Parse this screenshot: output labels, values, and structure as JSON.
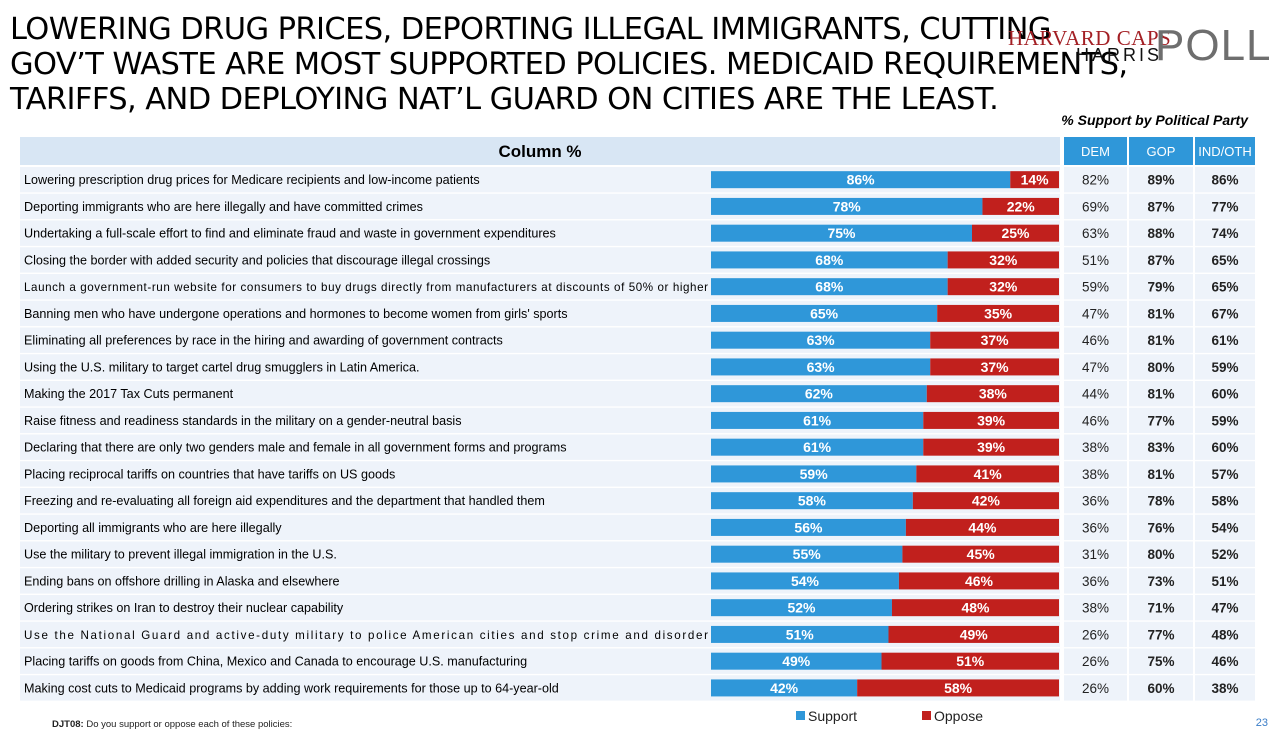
{
  "headline": [
    "LOWERING DRUG PRICES, DEPORTING ILLEGAL IMMIGRANTS, CUTTING",
    "GOV’T WASTE ARE MOST SUPPORTED POLICIES. MEDICAID REQUIREMENTS,",
    "TARIFFS, AND DEPLOYING NAT’L GUARD ON CITIES ARE THE LEAST."
  ],
  "logo": {
    "top": "HARVARD CAPS",
    "bottom": "HARRIS",
    "word": "POLL"
  },
  "party_caption": "% Support by Political Party",
  "column_header": "Column %",
  "footer": {
    "code": "DJT08:",
    "question": "Do you support or oppose each of these policies:"
  },
  "page_number": "23",
  "colors": {
    "support": "#2f97d9",
    "oppose": "#c1201d",
    "header_bg": "#d8e6f4",
    "row_bg": "#eef3fa",
    "party_header_bg": "#2f97d9"
  },
  "chart_data": {
    "type": "bar",
    "stacked": true,
    "orientation": "horizontal",
    "legend_position": "bottom",
    "series": [
      {
        "name": "Support",
        "values": [
          86,
          78,
          75,
          68,
          68,
          65,
          63,
          63,
          62,
          61,
          61,
          59,
          58,
          56,
          55,
          54,
          52,
          51,
          49,
          42
        ]
      },
      {
        "name": "Oppose",
        "values": [
          14,
          22,
          25,
          32,
          32,
          35,
          37,
          37,
          38,
          39,
          39,
          41,
          42,
          44,
          45,
          46,
          48,
          49,
          51,
          58
        ]
      }
    ],
    "categories": [
      "Lowering prescription drug prices for Medicare recipients and low-income patients",
      "Deporting immigrants who are here illegally and have committed crimes",
      "Undertaking a full-scale effort to find and eliminate fraud and waste in government expenditures",
      "Closing the border with added security and policies that discourage illegal crossings",
      "Launch a government-run website for consumers to buy drugs directly from manufacturers at discounts of 50% or higher",
      "Banning men who have undergone operations and hormones to become women from girls' sports",
      "Eliminating all preferences by race in the hiring and awarding of government contracts",
      "Using the U.S. military to target cartel drug smugglers in Latin America.",
      "Making the 2017 Tax Cuts permanent",
      "Raise fitness and readiness standards in the military on a gender-neutral basis",
      "Declaring that there are only two genders male and female in all government forms and programs",
      "Placing reciprocal tariffs on countries that have tariffs on US goods",
      "Freezing and re-evaluating all foreign aid expenditures and the department that handled them",
      "Deporting all immigrants who are here illegally",
      "Use the military to prevent illegal immigration in the U.S.",
      "Ending bans on offshore drilling in Alaska and elsewhere",
      "Ordering strikes on Iran to destroy their nuclear capability",
      "Use the National Guard and active-duty military to police American cities and stop crime and disorder",
      "Placing tariffs on goods from China, Mexico and Canada to encourage U.S. manufacturing",
      "Making cost cuts to Medicaid programs by adding work requirements for those up to 64-year-old"
    ],
    "party_table": {
      "columns": [
        "DEM",
        "GOP",
        "IND/OTH"
      ],
      "rows": [
        [
          "82%",
          "89%",
          "86%"
        ],
        [
          "69%",
          "87%",
          "77%"
        ],
        [
          "63%",
          "88%",
          "74%"
        ],
        [
          "51%",
          "87%",
          "65%"
        ],
        [
          "59%",
          "79%",
          "65%"
        ],
        [
          "47%",
          "81%",
          "67%"
        ],
        [
          "46%",
          "81%",
          "61%"
        ],
        [
          "47%",
          "80%",
          "59%"
        ],
        [
          "44%",
          "81%",
          "60%"
        ],
        [
          "46%",
          "77%",
          "59%"
        ],
        [
          "38%",
          "83%",
          "60%"
        ],
        [
          "38%",
          "81%",
          "57%"
        ],
        [
          "36%",
          "78%",
          "58%"
        ],
        [
          "36%",
          "76%",
          "54%"
        ],
        [
          "31%",
          "80%",
          "52%"
        ],
        [
          "36%",
          "73%",
          "51%"
        ],
        [
          "38%",
          "71%",
          "47%"
        ],
        [
          "26%",
          "77%",
          "48%"
        ],
        [
          "26%",
          "75%",
          "46%"
        ],
        [
          "26%",
          "60%",
          "38%"
        ]
      ]
    }
  }
}
